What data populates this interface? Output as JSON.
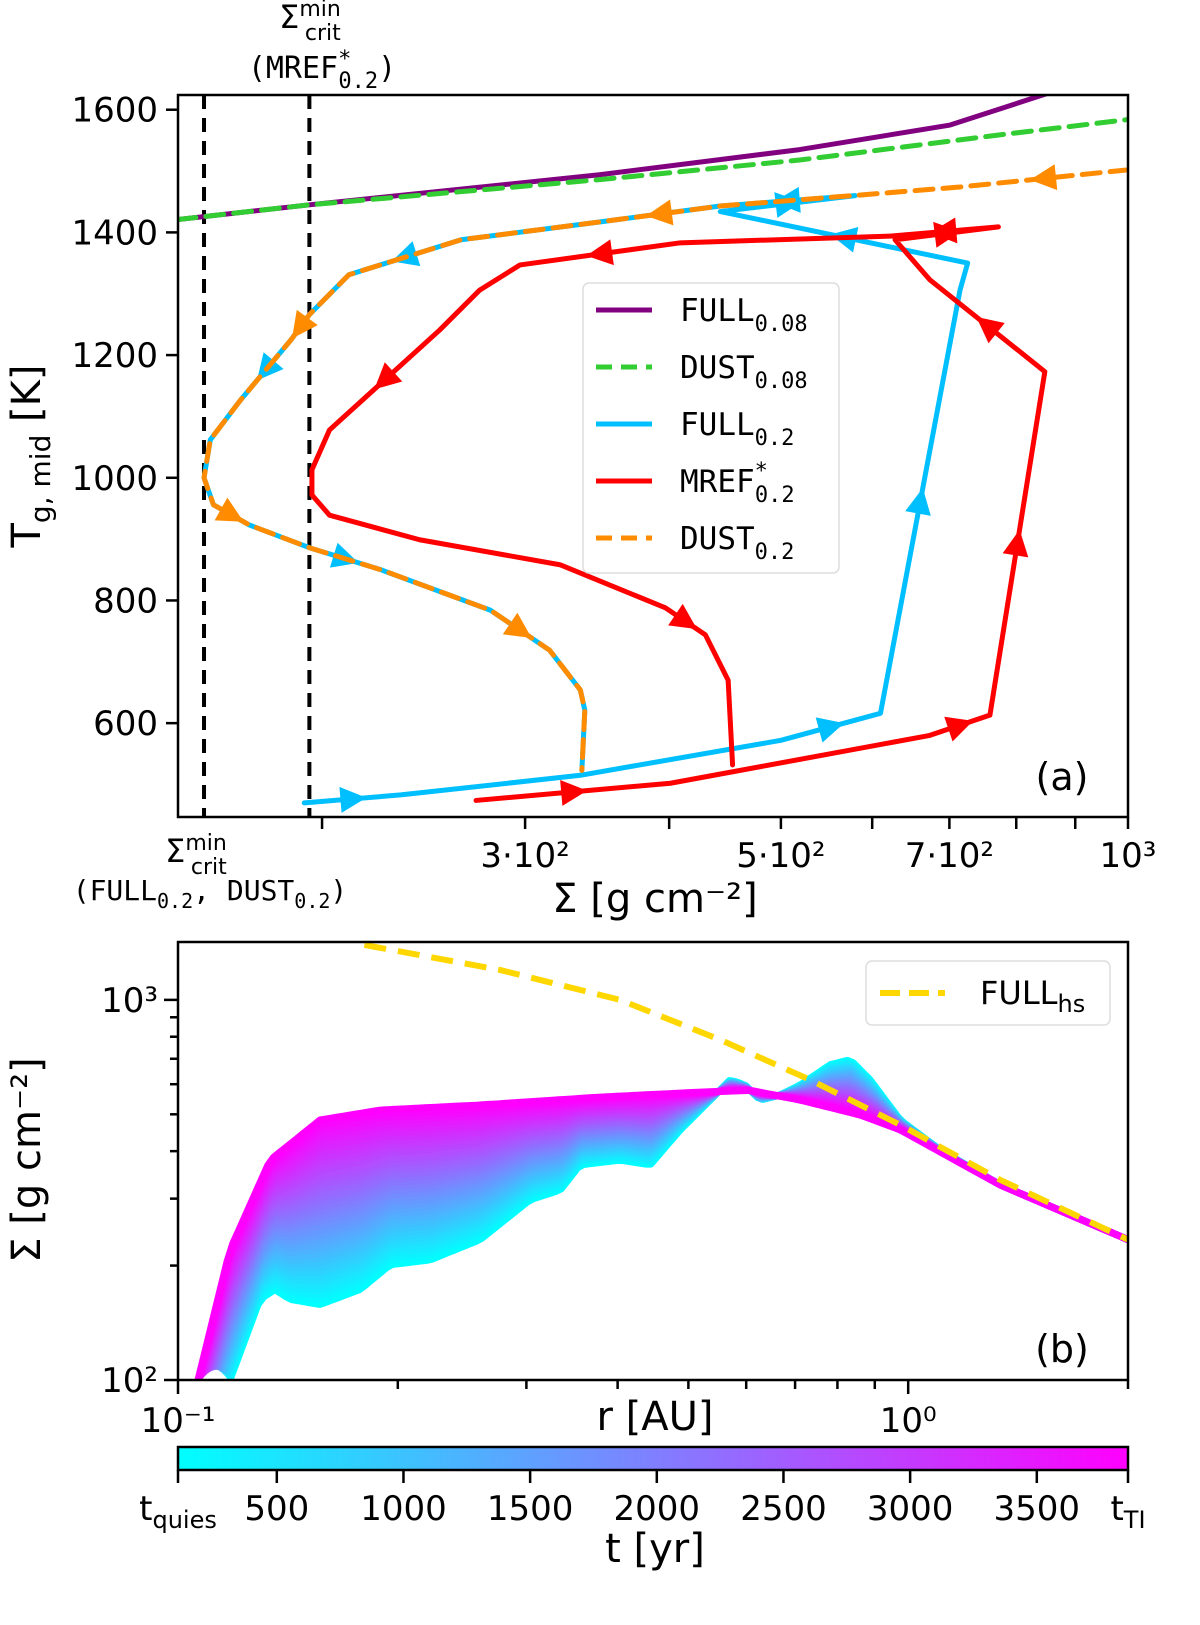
{
  "chart_data": [
    {
      "type": "line",
      "panel_label": "(a)",
      "xlabel": "Σ [g cm⁻²]",
      "ylabel": {
        "main": "T",
        "sub": "g, mid",
        "unit": " [K]"
      },
      "xscale": "log",
      "xlim": [
        150,
        1000
      ],
      "ylim": [
        447,
        1624
      ],
      "x_ticks": [
        200,
        300,
        400,
        500,
        600,
        700,
        800,
        900,
        1000
      ],
      "x_tick_labels": {
        "300": "3·10²",
        "500": "5·10²",
        "700": "7·10²",
        "1000": "10³"
      },
      "y_ticks": [
        600,
        800,
        1000,
        1200,
        1400,
        1600
      ],
      "y_tick_labels": [
        "600",
        "800",
        "1000",
        "1200",
        "1400",
        "1600"
      ],
      "legend_placement": "center-right",
      "vlines": [
        {
          "x": 158,
          "label": {
            "main": "Σ",
            "sup": "min",
            "sub": "crit",
            "paren_base": "(FULL",
            "paren_sub1": "0.2",
            "paren_mid": ", DUST",
            "paren_sub2": "0.2",
            "paren_end": ")"
          }
        },
        {
          "x": 195,
          "label": {
            "main": "Σ",
            "sup": "min",
            "sub": "crit",
            "paren_base": "(MREF",
            "paren_sup": "*",
            "paren_sub1": "0.2",
            "paren_end": ")"
          }
        }
      ],
      "series": [
        {
          "name": "FULL",
          "sub": "0.08",
          "color": "#800080",
          "dash": "solid",
          "points": [
            [
              150,
              1421
            ],
            [
              195,
              1445
            ],
            [
              348,
              1494
            ],
            [
              519,
              1535
            ],
            [
              701,
              1575
            ],
            [
              856,
              1628
            ]
          ],
          "arrows": []
        },
        {
          "name": "DUST",
          "sub": "0.08",
          "color": "#32cd32",
          "dash": "dashed",
          "points": [
            [
              150,
              1421
            ],
            [
              195,
              1445
            ],
            [
              348,
              1486
            ],
            [
              519,
              1518
            ],
            [
              774,
              1559
            ],
            [
              1000,
              1584
            ]
          ],
          "arrows": []
        },
        {
          "name": "FULL",
          "sub": "0.2",
          "color": "#00bfff",
          "dash": "solid",
          "points": [
            [
              193,
              470
            ],
            [
              234,
              483
            ],
            [
              335,
              515
            ],
            [
              500,
              572
            ],
            [
              610,
              616
            ],
            [
              715,
              1306
            ],
            [
              726,
              1350
            ],
            [
              443,
              1434
            ],
            [
              580,
              1460
            ],
            [
              443,
              1443
            ],
            [
              348,
              1417
            ],
            [
              264,
              1388
            ],
            [
              211,
              1331
            ],
            [
              195,
              1266
            ],
            [
              188,
              1225
            ],
            [
              170,
              1127
            ],
            [
              160,
              1062
            ],
            [
              158,
              1000
            ],
            [
              161,
              956
            ],
            [
              173,
              923
            ],
            [
              195,
              886
            ],
            [
              225,
              850
            ],
            [
              280,
              784
            ],
            [
              315,
              719
            ],
            [
              335,
              654
            ],
            [
              338,
              621
            ],
            [
              336,
              523
            ]
          ],
          "arrows": [
            0,
            3,
            4,
            6,
            7,
            8,
            11,
            14,
            20
          ]
        },
        {
          "name": "MREF",
          "sup": "*",
          "sub": "0.2",
          "color": "#ff0000",
          "dash": "solid",
          "points": [
            [
              272,
              474
            ],
            [
              401,
              502
            ],
            [
              673,
              580
            ],
            [
              759,
              613
            ],
            [
              847,
              1173
            ],
            [
              673,
              1323
            ],
            [
              628,
              1388
            ],
            [
              772,
              1409
            ],
            [
              622,
              1394
            ],
            [
              409,
              1383
            ],
            [
              297,
              1347
            ],
            [
              274,
              1306
            ],
            [
              253,
              1241
            ],
            [
              203,
              1078
            ],
            [
              196,
              1013
            ],
            [
              196,
              972
            ],
            [
              203,
              939
            ],
            [
              243,
              899
            ],
            [
              322,
              858
            ],
            [
              397,
              788
            ],
            [
              430,
              744
            ],
            [
              450,
              670
            ],
            [
              454,
              532
            ]
          ],
          "arrows": [
            0,
            2,
            3,
            4,
            6,
            7,
            9,
            12,
            19
          ]
        },
        {
          "name": "DUST",
          "sub": "0.2",
          "color": "#ff8c00",
          "dash": "dashed",
          "points": [
            [
              1000,
              1502
            ],
            [
              715,
              1474
            ],
            [
              551,
              1457
            ],
            [
              443,
              1443
            ],
            [
              348,
              1417
            ],
            [
              264,
              1388
            ],
            [
              211,
              1331
            ],
            [
              195,
              1266
            ],
            [
              188,
              1225
            ],
            [
              170,
              1127
            ],
            [
              160,
              1062
            ],
            [
              158,
              1000
            ],
            [
              161,
              956
            ],
            [
              173,
              923
            ],
            [
              195,
              886
            ],
            [
              225,
              850
            ],
            [
              280,
              784
            ],
            [
              315,
              719
            ],
            [
              335,
              654
            ],
            [
              338,
              621
            ],
            [
              336,
              523
            ]
          ],
          "arrows": [
            0,
            3,
            7,
            12,
            16
          ]
        }
      ]
    },
    {
      "type": "line",
      "panel_label": "(b)",
      "xlabel": "r [AU]",
      "ylabel": "Σ [g cm⁻²]",
      "xscale": "log",
      "yscale": "log",
      "xlim": [
        0.1,
        2.0
      ],
      "ylim": [
        100,
        1420
      ],
      "x_ticks": [
        0.1,
        0.2,
        0.3,
        0.4,
        0.5,
        0.6,
        0.7,
        0.8,
        0.9,
        1.0,
        2.0
      ],
      "x_tick_labels": {
        "0.1": "10⁻¹",
        "1": "10⁰"
      },
      "y_ticks": [
        100,
        200,
        300,
        400,
        500,
        600,
        700,
        800,
        900,
        1000
      ],
      "y_tick_labels": {
        "100": "10²",
        "1000": "10³"
      },
      "legend_placement": "top-right",
      "reference": {
        "name": "FULL",
        "sub": "hs",
        "color": "#ffd700",
        "dash": "dashed",
        "points": [
          [
            0.18,
            1395
          ],
          [
            0.276,
            1199
          ],
          [
            0.403,
            1000
          ],
          [
            0.553,
            785
          ],
          [
            0.734,
            616
          ],
          [
            0.975,
            469
          ],
          [
            1.337,
            336
          ],
          [
            2.0,
            234
          ]
        ]
      },
      "profiles_time_range": {
        "earliest": {
          "color": "#00ffff",
          "points": [
            [
              0.1178,
              100
            ],
            [
              0.1295,
              163
            ],
            [
              0.1358,
              173
            ],
            [
              0.1423,
              163
            ],
            [
              0.1565,
              158
            ],
            [
              0.1776,
              173
            ],
            [
              0.1952,
              201
            ],
            [
              0.2215,
              207
            ],
            [
              0.2593,
              234
            ],
            [
              0.3036,
              298
            ],
            [
              0.3337,
              316
            ],
            [
              0.3553,
              368
            ],
            [
              0.403,
              379
            ],
            [
              0.4433,
              368
            ],
            [
              0.4873,
              455
            ],
            [
              0.5356,
              545
            ],
            [
              0.5703,
              616
            ],
            [
              0.598,
              597
            ],
            [
              0.627,
              545
            ],
            [
              0.6677,
              562
            ],
            [
              0.7112,
              597
            ],
            [
              0.7818,
              675
            ],
            [
              0.8327,
              696
            ],
            [
              0.887,
              616
            ],
            [
              0.975,
              483
            ],
            [
              1.106,
              403
            ],
            [
              1.337,
              326
            ],
            [
              2.0,
              234
            ]
          ]
        },
        "latest": {
          "color": "#ff00ff",
          "points": [
            [
              0.1065,
              100
            ],
            [
              0.1178,
              220
            ],
            [
              0.1337,
              379
            ],
            [
              0.1565,
              483
            ],
            [
              0.1891,
              513
            ],
            [
              0.2593,
              529
            ],
            [
              0.3786,
              555
            ],
            [
              0.519,
              572
            ],
            [
              0.6075,
              578
            ],
            [
              0.7112,
              545
            ],
            [
              0.859,
              498
            ],
            [
              0.975,
              455
            ],
            [
              1.337,
              326
            ],
            [
              2.0,
              234
            ]
          ]
        }
      }
    }
  ],
  "colorbar": {
    "label": "t [yr]",
    "colormap": [
      "#00ffff",
      "#ff00ff"
    ],
    "range": [
      110,
      3860
    ],
    "ticks": [
      500,
      1000,
      1500,
      2000,
      2500,
      3000,
      3500
    ],
    "tick_labels": [
      "500",
      "1000",
      "1500",
      "2000",
      "2500",
      "3000",
      "3500"
    ],
    "start_label": {
      "main": "t",
      "sub": "quies"
    },
    "end_label": {
      "main": "t",
      "sub": "TI"
    }
  }
}
